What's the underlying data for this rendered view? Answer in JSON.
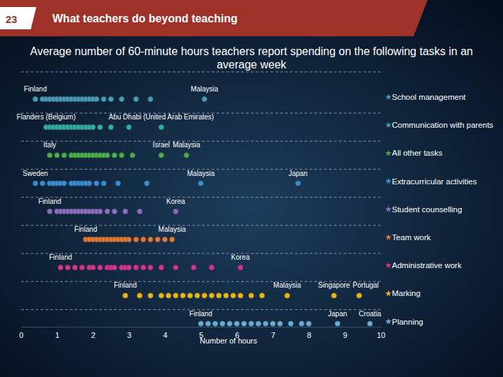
{
  "chart_data": {
    "type": "strip",
    "slide_number": 23,
    "header": "What teachers do beyond teaching",
    "title": "Average number of 60-minute hours teachers report spending on the following tasks in an average week",
    "x_label": "Number of hours",
    "xlim": [
      0,
      10
    ],
    "xticks": [
      0,
      1,
      2,
      3,
      4,
      5,
      6,
      7,
      8,
      9,
      10
    ],
    "grid": false,
    "tick_labels": "x",
    "series": [
      {
        "name": "School management",
        "color": "#4a9bb5",
        "values": [
          0.4,
          0.6,
          0.7,
          0.8,
          0.9,
          1.0,
          1.0,
          1.1,
          1.2,
          1.3,
          1.4,
          1.5,
          1.6,
          1.7,
          1.8,
          1.9,
          2.0,
          2.1,
          2.3,
          2.5,
          2.8,
          3.2,
          3.6,
          5.1
        ],
        "labels": [
          "Finland",
          null,
          null,
          null,
          null,
          null,
          null,
          null,
          null,
          null,
          null,
          null,
          null,
          null,
          null,
          null,
          null,
          null,
          null,
          null,
          null,
          null,
          null,
          "Malaysia"
        ]
      },
      {
        "name": "Communication with parents",
        "color": "#35ad9c",
        "values": [
          0.7,
          0.8,
          0.9,
          1.0,
          1.0,
          1.1,
          1.2,
          1.2,
          1.3,
          1.3,
          1.4,
          1.5,
          1.6,
          1.7,
          1.8,
          1.9,
          2.0,
          2.2,
          2.5,
          3.0,
          3.9
        ],
        "labels": [
          "Flanders (Belgium)",
          null,
          null,
          null,
          null,
          null,
          null,
          null,
          null,
          null,
          null,
          null,
          null,
          null,
          null,
          null,
          null,
          null,
          null,
          null,
          "Abu Dhabi (United Arab Emirates)"
        ]
      },
      {
        "name": "All other tasks",
        "color": "#4cae4c",
        "values": [
          0.8,
          1.0,
          1.2,
          1.4,
          1.5,
          1.6,
          1.7,
          1.8,
          1.9,
          2.0,
          2.1,
          2.2,
          2.3,
          2.4,
          2.6,
          2.8,
          3.1,
          3.9,
          4.6
        ],
        "labels": [
          "Italy",
          null,
          null,
          null,
          null,
          null,
          null,
          null,
          null,
          null,
          null,
          null,
          null,
          null,
          null,
          null,
          null,
          "Israel",
          "Malaysia"
        ]
      },
      {
        "name": "Extracurricular activities",
        "color": "#3b8fd0",
        "values": [
          0.4,
          0.6,
          0.8,
          0.9,
          1.0,
          1.1,
          1.2,
          1.4,
          1.5,
          1.6,
          1.7,
          1.8,
          1.9,
          2.1,
          2.3,
          2.7,
          3.5,
          5.0,
          7.7
        ],
        "labels": [
          "Sweden",
          null,
          null,
          null,
          null,
          null,
          null,
          null,
          null,
          null,
          null,
          null,
          null,
          null,
          null,
          null,
          null,
          "Malaysia",
          "Japan"
        ]
      },
      {
        "name": "Student counselling",
        "color": "#8e6fbf",
        "values": [
          0.8,
          1.0,
          1.1,
          1.2,
          1.3,
          1.4,
          1.5,
          1.6,
          1.7,
          1.8,
          1.9,
          2.0,
          2.1,
          2.2,
          2.4,
          2.6,
          2.9,
          3.3,
          4.3
        ],
        "labels": [
          "Finland",
          null,
          null,
          null,
          null,
          null,
          null,
          null,
          null,
          null,
          null,
          null,
          null,
          null,
          null,
          null,
          null,
          null,
          "Korea"
        ]
      },
      {
        "name": "Team work",
        "color": "#e07b39",
        "values": [
          1.8,
          1.9,
          2.0,
          2.1,
          2.2,
          2.3,
          2.4,
          2.5,
          2.6,
          2.7,
          2.8,
          2.9,
          3.0,
          3.2,
          3.4,
          3.6,
          3.8,
          4.0,
          4.2
        ],
        "labels": [
          "Finland",
          null,
          null,
          null,
          null,
          null,
          null,
          null,
          null,
          null,
          null,
          null,
          null,
          null,
          null,
          null,
          null,
          null,
          "Malaysia"
        ]
      },
      {
        "name": "Administrative work",
        "color": "#d0388a",
        "values": [
          1.1,
          1.3,
          1.5,
          1.7,
          1.9,
          2.0,
          2.2,
          2.4,
          2.5,
          2.6,
          2.8,
          2.9,
          3.0,
          3.2,
          3.4,
          3.6,
          3.9,
          4.3,
          4.8,
          5.3,
          6.1
        ],
        "labels": [
          "Finland",
          null,
          null,
          null,
          null,
          null,
          null,
          null,
          null,
          null,
          null,
          null,
          null,
          null,
          null,
          null,
          null,
          null,
          null,
          null,
          "Korea"
        ]
      },
      {
        "name": "Marking",
        "color": "#e8b820",
        "values": [
          2.9,
          3.3,
          3.6,
          3.9,
          4.1,
          4.3,
          4.5,
          4.7,
          4.9,
          5.1,
          5.3,
          5.5,
          5.7,
          5.9,
          6.1,
          6.4,
          6.7,
          7.4,
          8.7,
          9.4
        ],
        "labels": [
          "Finland",
          null,
          null,
          null,
          null,
          null,
          null,
          null,
          null,
          null,
          null,
          null,
          null,
          null,
          null,
          null,
          null,
          "Malaysia",
          "Singapore",
          "Portugal"
        ]
      },
      {
        "name": "Planning",
        "color": "#6aaed6",
        "values": [
          5.0,
          5.2,
          5.4,
          5.6,
          5.8,
          6.0,
          6.2,
          6.4,
          6.6,
          6.8,
          7.0,
          7.2,
          7.5,
          7.8,
          8.0,
          8.8,
          9.7
        ],
        "labels": [
          "Finland",
          null,
          null,
          null,
          null,
          null,
          null,
          null,
          null,
          null,
          null,
          null,
          null,
          null,
          null,
          "Japan",
          "Croatia"
        ]
      }
    ]
  }
}
